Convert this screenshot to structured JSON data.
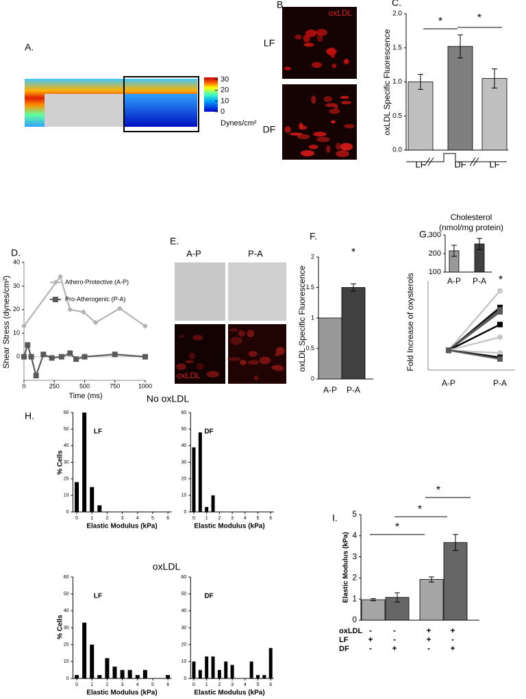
{
  "chart_data": [
    {
      "type": "colormap",
      "label": "A.",
      "colorbar_label": "Dynes/cm²",
      "ylim": [
        0,
        32
      ],
      "yticks": [
        0,
        10,
        20,
        30
      ]
    },
    {
      "type": "bar",
      "label": "C.",
      "ylabel": "oxLDL Specific Fluorescence",
      "categories": [
        "LF",
        "DF",
        "LF"
      ],
      "values": [
        1.0,
        1.52,
        1.05
      ],
      "errors": [
        0.11,
        0.17,
        0.14
      ],
      "colors": [
        "#bfbfbf",
        "#7f7f7f",
        "#bfbfbf"
      ],
      "ylim": [
        0,
        2
      ],
      "yticks": [
        {
          "value": 0,
          "label": "0.0"
        },
        {
          "value": 0.5,
          "label": "0.5"
        },
        {
          "value": 1,
          "label": "1.0"
        },
        {
          "value": 1.5,
          "label": "1.5"
        },
        {
          "value": 2,
          "label": "2.0"
        }
      ],
      "annotations": [
        "*",
        "*"
      ]
    },
    {
      "type": "line",
      "label": "D.",
      "ylabel": "Shear Stress (dynes/cm²)",
      "xlabel": "Time (ms)",
      "xlim": [
        0,
        1000
      ],
      "ylim": [
        -10,
        40
      ],
      "xticks": [
        0,
        250,
        500,
        750,
        1000
      ],
      "yticks": [
        0,
        10,
        20,
        30,
        40
      ],
      "legend": "upper right",
      "series": [
        {
          "name": "Athero-Protective (A-P)",
          "color": "#b3b3b3",
          "marker": "diamond",
          "x": [
            0,
            300,
            380,
            490,
            590,
            790,
            1000
          ],
          "values": [
            13,
            34,
            20,
            19,
            14.5,
            20.5,
            13
          ]
        },
        {
          "name": "Pro-Atherogenic (P-A)",
          "color": "#595959",
          "marker": "square",
          "x": [
            0,
            30,
            60,
            100,
            160,
            230,
            310,
            380,
            430,
            500,
            750,
            1000
          ],
          "values": [
            0,
            5,
            0,
            -8,
            1,
            -0.5,
            0,
            1.5,
            -1,
            0,
            1,
            0
          ]
        }
      ]
    },
    {
      "type": "bar",
      "label": "F.",
      "ylabel": "oxLDL Specific Fluorescence",
      "categories": [
        "A-P",
        "P-A"
      ],
      "values": [
        1,
        1.5
      ],
      "errors": [
        null,
        0.06
      ],
      "colors": [
        "#999999",
        "#404040"
      ],
      "ylim": [
        0,
        2
      ],
      "yticks": [
        0,
        0.5,
        1,
        1.5,
        2
      ],
      "annotations": [
        "*"
      ]
    },
    {
      "type": "paired",
      "label": "G.",
      "ylabel": "Fold Increase of oxysterols",
      "categories": [
        "A-P",
        "P-A"
      ],
      "ylim": [
        0.5,
        2.75
      ],
      "annotations": [
        "*"
      ],
      "series": [
        {
          "color": "#c8c8c8",
          "marker": "circle",
          "values": [
            1,
            2.5
          ]
        },
        {
          "color": "#000000",
          "marker": "square",
          "values": [
            1,
            2.08
          ]
        },
        {
          "color": "#595959",
          "marker": "square",
          "values": [
            1,
            2.02
          ]
        },
        {
          "color": "#595959",
          "marker": "square",
          "values": [
            1,
            1.97
          ]
        },
        {
          "color": "#000000",
          "marker": "square",
          "values": [
            1,
            1.65
          ]
        },
        {
          "color": "#c8c8c8",
          "marker": "circle",
          "values": [
            1,
            1.33
          ]
        },
        {
          "color": "#c8c8c8",
          "marker": "circle",
          "values": [
            1,
            0.93
          ]
        },
        {
          "color": "#000000",
          "marker": "square",
          "values": [
            1,
            0.82
          ]
        },
        {
          "color": "#595959",
          "marker": "square",
          "values": [
            1,
            0.78
          ]
        }
      ]
    },
    {
      "type": "bar",
      "title": "Cholesterol",
      "subtitle": "(nmol/mg protein)",
      "categories": [
        "A-P",
        "P-A"
      ],
      "values": [
        215,
        252
      ],
      "errors": [
        30,
        30
      ],
      "colors": [
        "#999999",
        "#404040"
      ],
      "ylim": [
        100,
        300
      ],
      "yticks": [
        100,
        200,
        300
      ]
    },
    {
      "type": "bar",
      "title": "LF",
      "ylabel": "% Cells",
      "xlabel": "Elastic Modulus (kPa)",
      "color": "#000000",
      "x": [
        0,
        0.5,
        1,
        1.5,
        2,
        2.5,
        3,
        3.5,
        4,
        4.5,
        5,
        5.5,
        6
      ],
      "values": [
        18,
        60,
        15,
        4,
        0,
        0,
        0,
        0,
        0,
        0,
        0,
        0,
        0
      ],
      "xlim": [
        -0.25,
        6.25
      ],
      "ylim": [
        0,
        60
      ],
      "xticks": [
        0,
        1,
        2,
        3,
        4,
        5,
        6
      ],
      "yticks": [
        0,
        10,
        20,
        30,
        40,
        50,
        60
      ]
    },
    {
      "type": "bar",
      "title": "DF",
      "xlabel": "Elastic Modulus (kPa)",
      "color": "#000000",
      "x": [
        0,
        0.5,
        1,
        1.5,
        2,
        2.5,
        3,
        3.5,
        4,
        4.5,
        5,
        5.5,
        6
      ],
      "values": [
        39,
        48,
        3,
        10,
        0,
        0,
        0,
        0,
        0,
        0,
        0,
        0,
        0
      ],
      "xlim": [
        -0.25,
        6.25
      ],
      "ylim": [
        0,
        60
      ],
      "xticks": [
        0,
        1,
        2,
        3,
        4,
        5,
        6
      ],
      "yticks": [
        0,
        10,
        20,
        30,
        40,
        50,
        60
      ]
    },
    {
      "type": "bar",
      "title": "LF",
      "ylabel": "% Cells",
      "xlabel": "Elastic Modulus (kPa)",
      "color": "#000000",
      "x": [
        0,
        0.5,
        1,
        1.5,
        2,
        2.5,
        3,
        3.5,
        4,
        4.5,
        5,
        5.5,
        6
      ],
      "values": [
        2,
        33,
        20,
        2,
        12,
        7,
        5,
        5,
        2,
        5,
        0,
        0,
        2
      ],
      "xlim": [
        -0.25,
        6.25
      ],
      "ylim": [
        0,
        60
      ],
      "xticks": [
        0,
        1,
        2,
        3,
        4,
        5,
        6
      ],
      "yticks": [
        0,
        10,
        20,
        30,
        40,
        50,
        60
      ]
    },
    {
      "type": "bar",
      "title": "DF",
      "xlabel": "Elastic Modulus (kPa)",
      "color": "#000000",
      "x": [
        0,
        0.5,
        1,
        1.5,
        2,
        2.5,
        3,
        3.5,
        4,
        4.5,
        5,
        5.5,
        6
      ],
      "values": [
        10,
        5,
        13,
        13,
        5,
        10,
        8,
        0,
        0,
        10,
        2,
        2,
        18
      ],
      "xlim": [
        -0.25,
        6.25
      ],
      "ylim": [
        0,
        60
      ],
      "xticks": [
        0,
        1,
        2,
        3,
        4,
        5,
        6
      ],
      "yticks": [
        0,
        10,
        20,
        30,
        40,
        50,
        60
      ]
    },
    {
      "type": "bar",
      "label": "I.",
      "ylabel": "Elastic Modulus (kPa)",
      "values": [
        0.97,
        1.08,
        1.93,
        3.68
      ],
      "errors": [
        0.05,
        0.22,
        0.12,
        0.38
      ],
      "colors": [
        "#a6a6a6",
        "#666666",
        "#a6a6a6",
        "#666666"
      ],
      "ylim": [
        0,
        5
      ],
      "yticks": [
        0,
        1,
        2,
        3,
        4,
        5
      ],
      "annotations": [
        "*",
        "*",
        "*"
      ],
      "table": [
        {
          "label": "oxLDL",
          "cells": [
            "-",
            "-",
            "+",
            "+"
          ]
        },
        {
          "label": "LF",
          "cells": [
            "+",
            "-",
            "+",
            "-"
          ]
        },
        {
          "label": "DF",
          "cells": [
            "-",
            "+",
            "-",
            "+"
          ]
        }
      ]
    }
  ],
  "figure": {
    "B": {
      "label": "B.",
      "stain": "oxLDL",
      "rows": [
        "LF",
        "DF"
      ]
    },
    "E": {
      "label": "E.",
      "columns": [
        "A-P",
        "P-A"
      ],
      "stain": "oxLDL"
    },
    "H": {
      "label": "H.",
      "groups": [
        "No oxLDL",
        "oxLDL"
      ]
    }
  }
}
